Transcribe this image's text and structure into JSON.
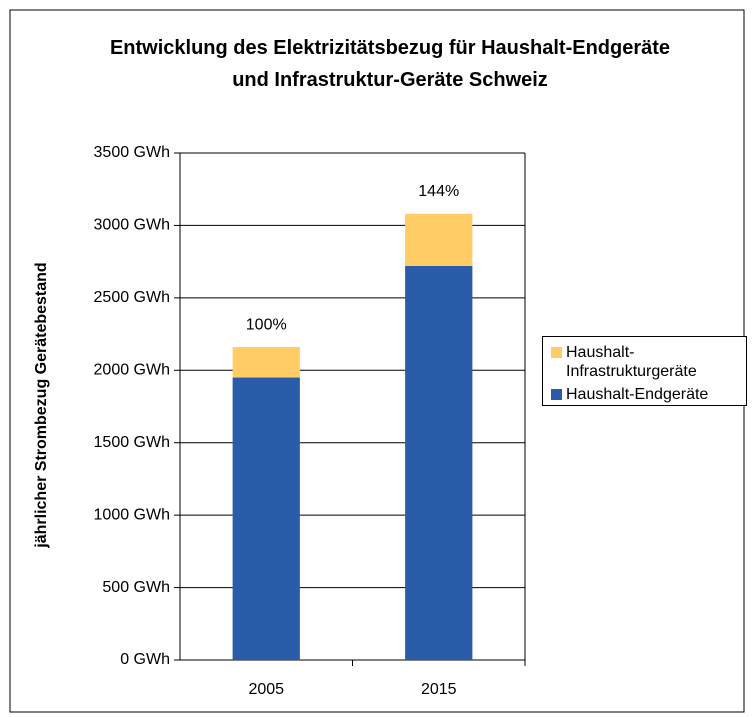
{
  "chart_data": {
    "type": "stacked_bar",
    "title": "Entwicklung des Elektrizitätsbezug für Haushalt-Endgeräte und Infrastruktur-Geräte Schweiz",
    "y_label": "jährlicher Strombezug Gerätebestand",
    "categories": [
      "2005",
      "2015"
    ],
    "series": [
      {
        "name": "Haushalt-Endgeräte",
        "color": "#2a5caa",
        "values": [
          1950,
          2720
        ]
      },
      {
        "name": "Haushalt-Infrastrukturgeräte",
        "color": "#ffcc66",
        "values": [
          210,
          360
        ]
      }
    ],
    "bar_labels": [
      "100%",
      "144%"
    ],
    "ylim": [
      0,
      3500
    ],
    "yticks": [
      {
        "value": 0,
        "label": "0 GWh"
      },
      {
        "value": 500,
        "label": "500 GWh"
      },
      {
        "value": 1000,
        "label": "1000 GWh"
      },
      {
        "value": 1500,
        "label": "1500 GWh"
      },
      {
        "value": 2000,
        "label": "2000 GWh"
      },
      {
        "value": 2500,
        "label": "2500 GWh"
      },
      {
        "value": 3000,
        "label": "3000 GWh"
      },
      {
        "value": 3500,
        "label": "3500 GWh"
      }
    ],
    "grid": true,
    "legend": "right"
  }
}
